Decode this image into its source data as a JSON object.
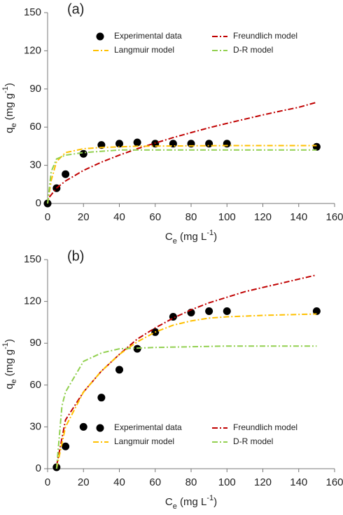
{
  "chart_data": [
    {
      "type": "scatter",
      "panel_label": "(a)",
      "x_label": [
        {
          "text": "C"
        },
        {
          "text": "e",
          "sub": true
        },
        {
          "text": " (mg L"
        },
        {
          "text": "-1",
          "sup": true
        },
        {
          "text": ")"
        }
      ],
      "y_label": [
        {
          "text": "q"
        },
        {
          "text": "e",
          "sub": true
        },
        {
          "text": " (mg g"
        },
        {
          "text": "-1",
          "sup": true
        },
        {
          "text": ")"
        }
      ],
      "xlim": [
        0,
        160
      ],
      "xticks": [
        0,
        20,
        40,
        60,
        80,
        100,
        120,
        140,
        160
      ],
      "ylim": [
        0,
        150
      ],
      "yticks": [
        0,
        30,
        60,
        90,
        120,
        150
      ],
      "legend": "upper center",
      "series": [
        {
          "name": "Experimental data",
          "mode": "markers",
          "color": "#000000",
          "x": [
            0,
            5,
            10,
            20,
            30,
            40,
            50,
            60,
            70,
            80,
            90,
            100,
            150
          ],
          "values": [
            0,
            12,
            23,
            39,
            46,
            47,
            48,
            47,
            47,
            47,
            47,
            47,
            44.5
          ]
        },
        {
          "name": "Freundlich model",
          "mode": "lines",
          "color": "#c00000",
          "x": [
            1,
            5,
            10,
            20,
            30,
            40,
            50,
            60,
            70,
            80,
            90,
            100,
            110,
            120,
            130,
            140,
            150
          ],
          "values": [
            5,
            12.1,
            17.7,
            26,
            32.5,
            38,
            43,
            47.5,
            51.8,
            55.7,
            59.5,
            63,
            66.3,
            69.6,
            72.7,
            75.6,
            79.5
          ]
        },
        {
          "name": "Langmuir model",
          "mode": "lines",
          "color": "#ffc000",
          "x": [
            0,
            2,
            5,
            10,
            20,
            30,
            50,
            100,
            150
          ],
          "values": [
            0,
            18,
            33,
            40,
            43,
            44,
            45,
            45.5,
            45.5
          ]
        },
        {
          "name": "D-R model",
          "mode": "lines",
          "color": "#92d050",
          "x": [
            0,
            2,
            5,
            10,
            20,
            40,
            60,
            100,
            150
          ],
          "values": [
            0,
            25,
            35,
            38,
            40,
            42,
            42,
            42,
            42
          ]
        }
      ]
    },
    {
      "type": "scatter",
      "panel_label": "(b)",
      "x_label": [
        {
          "text": "C"
        },
        {
          "text": "e",
          "sub": true
        },
        {
          "text": " (mg L"
        },
        {
          "text": "-1",
          "sup": true
        },
        {
          "text": ")"
        }
      ],
      "y_label": [
        {
          "text": "q"
        },
        {
          "text": "e",
          "sub": true
        },
        {
          "text": " (mg g"
        },
        {
          "text": "-1",
          "sup": true
        },
        {
          "text": ")"
        }
      ],
      "xlim": [
        0,
        160
      ],
      "xticks": [
        0,
        20,
        40,
        60,
        80,
        100,
        120,
        140,
        160
      ],
      "ylim": [
        0,
        150
      ],
      "yticks": [
        0,
        30,
        60,
        90,
        120,
        150
      ],
      "legend": "lower center",
      "series": [
        {
          "name": "Experimental data",
          "mode": "markers",
          "color": "#000000",
          "x": [
            5,
            10,
            20,
            30,
            40,
            50,
            60,
            70,
            80,
            90,
            100,
            150
          ],
          "values": [
            1,
            16,
            30,
            51,
            71,
            86,
            98,
            109,
            112,
            113,
            113,
            113
          ]
        },
        {
          "name": "Freundlich model",
          "mode": "lines",
          "color": "#c00000",
          "x": [
            5,
            10,
            20,
            30,
            40,
            50,
            60,
            70,
            80,
            90,
            100,
            110,
            120,
            130,
            140,
            150
          ],
          "values": [
            2,
            35,
            55,
            70,
            82,
            93,
            101,
            108,
            114,
            119,
            123,
            127,
            130,
            133,
            136,
            139
          ]
        },
        {
          "name": "Langmuir model",
          "mode": "lines",
          "color": "#ffc000",
          "x": [
            5,
            10,
            20,
            30,
            40,
            50,
            60,
            70,
            80,
            90,
            100,
            120,
            150
          ],
          "values": [
            0,
            30,
            55,
            70,
            82,
            91,
            98,
            103,
            106,
            108,
            109,
            110,
            111
          ]
        },
        {
          "name": "D-R model",
          "mode": "lines",
          "color": "#92d050",
          "x": [
            5,
            8,
            10,
            20,
            30,
            40,
            60,
            100,
            150
          ],
          "values": [
            0,
            45,
            55,
            77,
            83,
            86,
            87,
            88,
            88
          ]
        }
      ]
    }
  ]
}
